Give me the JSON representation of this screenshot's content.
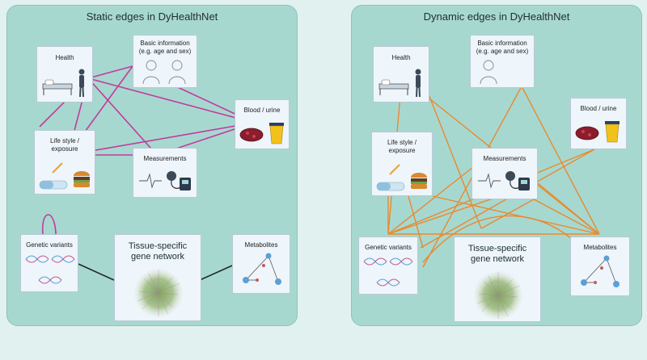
{
  "colors": {
    "background": "#e1f1ef",
    "panel": "#a7d8d0",
    "box": "#eef5fb",
    "static_edge": "#c23b9b",
    "dynamic_edge": "#e88a2e",
    "network_edge": "#1f2a2a"
  },
  "panels": [
    {
      "title": "Static edges in DyHealthNet",
      "nodes": {
        "health": "Health",
        "basic": "Basic information\n(e.g. age and sex)",
        "blood": "Blood / urine",
        "lifestyle": "Life style /\nexposure",
        "measurements": "Measurements",
        "genetic": "Genetic variants",
        "tissue": "Tissue-specific\ngene network",
        "metabolites": "Metabolites"
      }
    },
    {
      "title": "Dynamic edges in DyHealthNet",
      "nodes": {
        "health": "Health",
        "basic": "Basic information\n(e.g. age and sex)",
        "blood": "Blood / urine",
        "lifestyle": "Life style /\nexposure",
        "measurements": "Measurements",
        "genetic": "Genetic variants",
        "tissue": "Tissue-specific\ngene network",
        "metabolites": "Metabolites"
      }
    }
  ],
  "icons": [
    "hospital-bed-icon",
    "person-icon",
    "woman-silhouette-icon",
    "blood-sample-icon",
    "urine-cup-icon",
    "cigarette-icon",
    "pill-icon",
    "burger-icon",
    "heartbeat-icon",
    "blood-pressure-monitor-icon",
    "dna-icon",
    "molecule-icon",
    "gene-network-hairball-icon"
  ]
}
